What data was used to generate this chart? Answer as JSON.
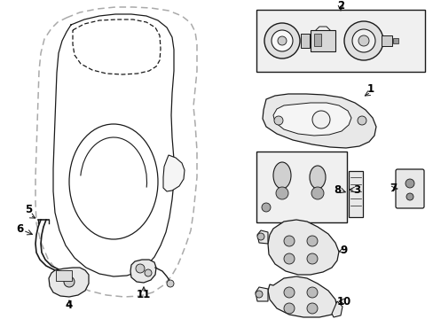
{
  "background_color": "#ffffff",
  "line_color": "#1a1a1a",
  "gray_fill": "#e8e8e8",
  "dark_gray": "#888888",
  "box_fill": "#f0f0f0"
}
